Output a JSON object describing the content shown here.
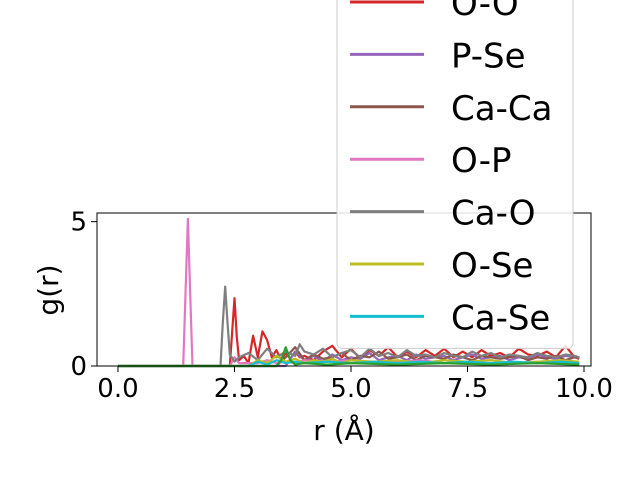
{
  "chart_data": {
    "type": "line",
    "xlabel": "r (Å)",
    "ylabel": "g(r)",
    "xlim": [
      -0.45,
      10.15
    ],
    "ylim": [
      0,
      5.3
    ],
    "xticks": [
      0.0,
      2.5,
      5.0,
      7.5,
      10.0
    ],
    "xtick_labels": [
      "0.0",
      "2.5",
      "5.0",
      "7.5",
      "10.0"
    ],
    "yticks": [
      0,
      5
    ],
    "ytick_labels": [
      "0",
      "5"
    ],
    "grid": false,
    "legend_placement": "top-right",
    "series": [
      {
        "name": "O-O",
        "color": "#d62728",
        "x": [
          0,
          2.4,
          2.45,
          2.5,
          2.55,
          2.6,
          2.7,
          2.8,
          2.9,
          3.0,
          3.1,
          3.2,
          3.3,
          3.4,
          3.5,
          3.6,
          3.7,
          3.8,
          3.9,
          4.0,
          4.2,
          4.4,
          4.6,
          4.8,
          5.0,
          5.2,
          5.4,
          5.6,
          5.8,
          6.0,
          6.2,
          6.4,
          6.6,
          6.8,
          7.0,
          7.2,
          7.4,
          7.6,
          7.8,
          8.0,
          8.2,
          8.4,
          8.6,
          8.8,
          9.0,
          9.2,
          9.4,
          9.6,
          9.8,
          9.9
        ],
        "y": [
          0,
          0,
          1.2,
          2.35,
          1.0,
          0.2,
          0.35,
          0.1,
          1.05,
          0.3,
          1.2,
          0.9,
          0.3,
          0.55,
          0.2,
          0.45,
          0.25,
          0.5,
          0.3,
          0.35,
          0.2,
          0.5,
          0.7,
          0.3,
          0.6,
          0.25,
          0.55,
          0.35,
          0.65,
          0.3,
          0.5,
          0.3,
          0.55,
          0.35,
          0.6,
          0.3,
          0.5,
          0.3,
          0.55,
          0.35,
          0.45,
          0.3,
          0.6,
          0.4,
          0.35,
          0.5,
          0.3,
          0.7,
          0.3,
          0.25
        ]
      },
      {
        "name": "P-Se",
        "color": "#9467bd",
        "x": [
          0,
          3.6,
          3.8,
          4.0,
          4.2,
          4.4,
          4.6,
          4.8,
          5.0,
          5.2,
          5.4,
          5.6,
          5.8,
          6.0,
          6.2,
          6.4,
          6.6,
          6.8,
          7.0,
          7.2,
          7.4,
          7.6,
          7.8,
          8.0,
          8.2,
          8.4,
          8.6,
          8.8,
          9.0,
          9.2,
          9.4,
          9.6,
          9.8,
          9.9
        ],
        "y": [
          0,
          0,
          0.5,
          0.2,
          0.35,
          0.15,
          0.4,
          0.2,
          0.3,
          0.25,
          0.45,
          0.2,
          0.3,
          0.35,
          0.2,
          0.4,
          0.25,
          0.3,
          0.35,
          0.2,
          0.3,
          0.4,
          0.25,
          0.3,
          0.35,
          0.2,
          0.3,
          0.25,
          0.4,
          0.3,
          0.25,
          0.35,
          0.3,
          0.3
        ]
      },
      {
        "name": "Ca-Ca",
        "color": "#8c564b",
        "x": [
          0,
          3.4,
          3.6,
          3.8,
          4.0,
          4.2,
          4.4,
          4.6,
          4.8,
          5.0,
          5.2,
          5.4,
          5.6,
          5.8,
          6.0,
          6.2,
          6.4,
          6.6,
          6.8,
          7.0,
          7.2,
          7.4,
          7.6,
          7.8,
          8.0,
          8.2,
          8.4,
          8.6,
          8.8,
          9.0,
          9.2,
          9.4,
          9.6,
          9.8,
          9.9
        ],
        "y": [
          0,
          0,
          0.3,
          0.65,
          0.2,
          0.4,
          0.25,
          0.3,
          0.45,
          0.2,
          0.35,
          0.3,
          0.5,
          0.25,
          0.3,
          0.4,
          0.2,
          0.35,
          0.3,
          0.25,
          0.4,
          0.3,
          0.2,
          0.35,
          0.3,
          0.25,
          0.3,
          0.35,
          0.2,
          0.3,
          0.25,
          0.35,
          0.2,
          0.3,
          0.3
        ]
      },
      {
        "name": "O-P",
        "color": "#e377c2",
        "x": [
          0,
          1.4,
          1.45,
          1.5,
          1.55,
          1.6,
          2.4,
          2.5,
          2.6,
          3.0,
          3.2,
          3.4,
          3.6,
          3.8,
          4.0,
          4.5,
          5.0,
          5.5,
          6.0,
          6.5,
          7.0,
          7.5,
          8.0,
          8.5,
          9.0,
          9.5,
          9.9
        ],
        "y": [
          0,
          0,
          2.5,
          5.1,
          2.5,
          0,
          0,
          0.3,
          0.1,
          0.1,
          0.2,
          0.1,
          0.15,
          0.1,
          0.2,
          0.15,
          0.2,
          0.1,
          0.15,
          0.2,
          0.1,
          0.15,
          0.2,
          0.1,
          0.15,
          0.1,
          0.1
        ]
      },
      {
        "name": "Ca-O",
        "color": "#7f7f7f",
        "x": [
          0,
          2.2,
          2.25,
          2.3,
          2.35,
          2.4,
          2.5,
          2.6,
          2.8,
          3.0,
          3.2,
          3.4,
          3.6,
          3.8,
          3.9,
          4.0,
          4.2,
          4.4,
          4.6,
          4.8,
          5.0,
          5.2,
          5.4,
          5.6,
          5.8,
          6.0,
          6.2,
          6.4,
          6.6,
          6.8,
          7.0,
          7.2,
          7.4,
          7.6,
          7.8,
          8.0,
          8.2,
          8.4,
          8.6,
          8.8,
          9.0,
          9.2,
          9.4,
          9.6,
          9.8,
          9.9
        ],
        "y": [
          0,
          0,
          1.5,
          2.75,
          1.5,
          0.4,
          0.15,
          0.3,
          0.45,
          0.2,
          0.6,
          0.3,
          0.5,
          0.35,
          0.75,
          0.5,
          0.4,
          0.6,
          0.3,
          0.45,
          0.55,
          0.3,
          0.6,
          0.35,
          0.45,
          0.3,
          0.55,
          0.35,
          0.4,
          0.3,
          0.45,
          0.35,
          0.3,
          0.5,
          0.35,
          0.45,
          0.3,
          0.4,
          0.35,
          0.3,
          0.45,
          0.35,
          0.3,
          0.4,
          0.35,
          0.3
        ]
      },
      {
        "name": "O-Se",
        "color": "#bcbd22",
        "x": [
          0,
          2.8,
          3.0,
          3.2,
          3.4,
          3.6,
          3.8,
          4.0,
          4.2,
          4.4,
          4.6,
          4.8,
          5.0,
          5.5,
          6.0,
          6.5,
          7.0,
          7.5,
          8.0,
          8.5,
          9.0,
          9.5,
          9.9
        ],
        "y": [
          0,
          0,
          0.2,
          0.1,
          0.35,
          0.15,
          0.25,
          0.1,
          0.2,
          0.15,
          0.25,
          0.1,
          0.2,
          0.15,
          0.2,
          0.1,
          0.2,
          0.15,
          0.2,
          0.1,
          0.15,
          0.2,
          0.15
        ]
      },
      {
        "name": "Ca-Se",
        "color": "#17becf",
        "x": [
          0,
          2.8,
          3.0,
          3.2,
          3.4,
          3.6,
          3.8,
          4.0,
          4.5,
          5.0,
          5.5,
          6.0,
          6.5,
          7.0,
          7.5,
          8.0,
          8.5,
          9.0,
          9.5,
          9.9
        ],
        "y": [
          0,
          0,
          0.15,
          0.05,
          0.2,
          0.1,
          0.15,
          0.1,
          0.15,
          0.1,
          0.15,
          0.1,
          0.15,
          0.1,
          0.15,
          0.1,
          0.15,
          0.1,
          0.15,
          0.1
        ]
      },
      {
        "name": "",
        "color": "#2ca02c",
        "x": [
          0,
          3.4,
          3.5,
          3.6,
          3.7,
          3.8,
          4.0,
          4.5,
          5.0,
          6.0,
          7.0,
          8.0,
          9.0,
          9.9
        ],
        "y": [
          0,
          0,
          0.2,
          0.65,
          0.2,
          0.05,
          0.1,
          0.05,
          0.1,
          0.05,
          0.1,
          0.05,
          0.1,
          0.05
        ]
      }
    ]
  }
}
